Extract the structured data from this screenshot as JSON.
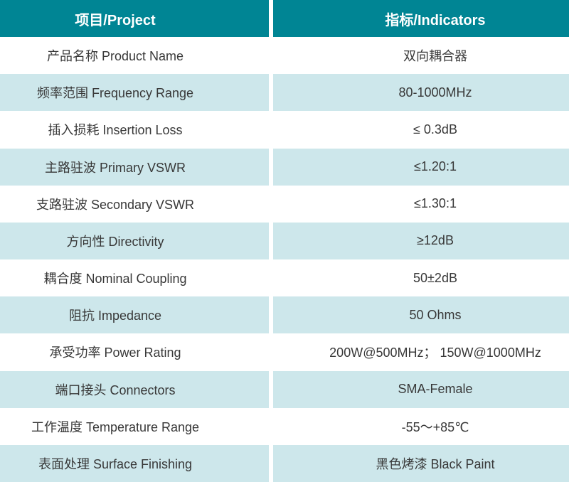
{
  "colors": {
    "header_bg": "#008594",
    "header_text": "#FFFFFF",
    "row_alt_bg": "#CDE7EB",
    "text": "#383838"
  },
  "table": {
    "header": {
      "project": "项目/Project",
      "indicators": "指标/Indicators"
    },
    "rows": [
      {
        "project": "产品名称 Product Name",
        "indicator": "双向耦合器"
      },
      {
        "project": "频率范围 Frequency Range",
        "indicator": "80-1000MHz"
      },
      {
        "project": "插入损耗 Insertion Loss",
        "indicator": "≤ 0.3dB"
      },
      {
        "project": "主路驻波 Primary VSWR",
        "indicator": "≤1.20:1"
      },
      {
        "project": "支路驻波 Secondary VSWR",
        "indicator": "≤1.30:1"
      },
      {
        "project": "方向性 Directivity",
        "indicator": "≥12dB"
      },
      {
        "project": "耦合度 Nominal Coupling",
        "indicator": "50±2dB"
      },
      {
        "project": "阻抗 Impedance",
        "indicator": "50 Ohms"
      },
      {
        "project": "承受功率 Power Rating",
        "indicator": "200W@500MHz； 150W@1000MHz"
      },
      {
        "project": "端口接头 Connectors",
        "indicator": "SMA-Female"
      },
      {
        "project": "工作温度 Temperature Range",
        "indicator": "-55～+85℃"
      },
      {
        "project": "表面处理 Surface Finishing",
        "indicator": "黑色烤漆 Black Paint"
      }
    ]
  }
}
